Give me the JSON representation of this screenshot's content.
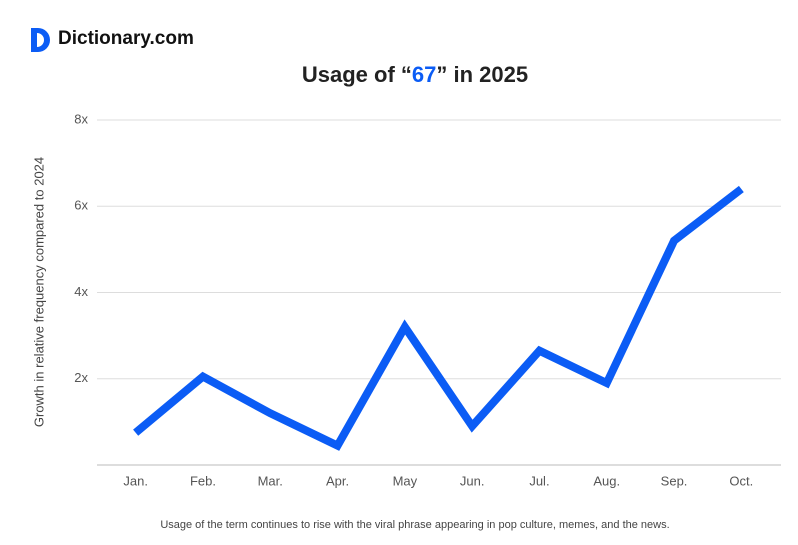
{
  "brand": "Dictionary.com",
  "chart_data": {
    "type": "line",
    "title": [
      "Usage of “",
      "67",
      "” in 2025"
    ],
    "y_label": "Growth in relative frequency compared to 2024",
    "caption": "Usage of the term continues to rise with the viral phrase appearing in pop culture, memes, and the news.",
    "categories": [
      "Jan.",
      "Feb.",
      "Mar.",
      "Apr.",
      "May",
      "Jun.",
      "Jul.",
      "Aug.",
      "Sep.",
      "Oct."
    ],
    "values": [
      0.75,
      2.05,
      1.2,
      0.45,
      3.2,
      0.9,
      2.65,
      1.9,
      5.2,
      6.4
    ],
    "color": "#0b5cf5",
    "ylim": [
      0,
      8
    ],
    "yticks": [
      {
        "value": 2,
        "label": "2x"
      },
      {
        "value": 4,
        "label": "4x"
      },
      {
        "value": 6,
        "label": "6x"
      },
      {
        "value": 8,
        "label": "8x"
      }
    ],
    "grid": true
  }
}
